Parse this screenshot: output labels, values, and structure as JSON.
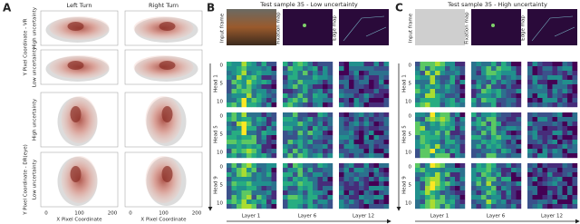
{
  "panel_a": {
    "label": "A",
    "columns": [
      "Left Turn",
      "Right Turn"
    ],
    "y_labels": [
      "Y Pixel Coordinate - VR",
      "Y Pixel Coordinate - DR(eye)"
    ],
    "row_labels": [
      "High uncertainty",
      "Low uncertainty",
      "High uncertainty",
      "Low uncertainty"
    ],
    "x_label": "X Pixel Coordinate",
    "x_ticks": [
      0,
      100,
      200
    ]
  },
  "panel_b": {
    "label": "B",
    "title": "Test sample 35 - Low uncertainty",
    "inputs": [
      "Input frame",
      "Fixation map",
      "Edge map"
    ],
    "heads": [
      "Head 1",
      "Head 5",
      "Head 9"
    ],
    "layers": [
      "Layer 1",
      "Layer 6",
      "Layer 12"
    ],
    "map_ticks": [
      0,
      5,
      10
    ]
  },
  "panel_c": {
    "label": "C",
    "title": "Test sample 35 - High uncertainty",
    "inputs": [
      "Input frame",
      "Fixation map",
      "Edge map"
    ],
    "heads": [
      "Head 1",
      "Head 5",
      "Head 9"
    ],
    "layers": [
      "Layer 1",
      "Layer 6",
      "Layer 12"
    ],
    "map_ticks": [
      0,
      5,
      10
    ]
  }
}
